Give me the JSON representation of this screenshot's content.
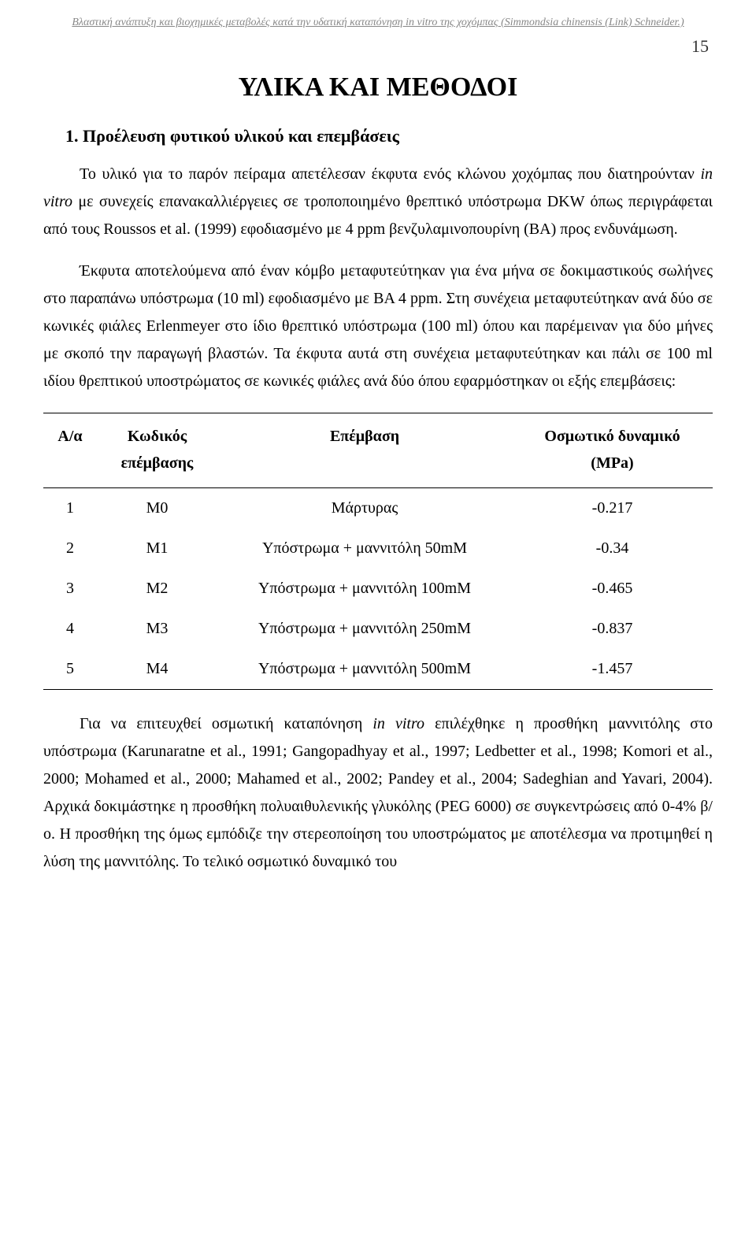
{
  "running_header": "Βλαστική ανάπτυξη και βιοχημικές μεταβολές κατά την υδατική καταπόνηση in vitro της χοχόμπας (Simmondsia chinensis (Link) Schneider.)",
  "page_number": "15",
  "chapter_title": "ΥΛΙΚΑ ΚΑΙ ΜΕΘΟΔΟΙ",
  "section_heading": "1. Προέλευση φυτικού υλικού και επεμβάσεις",
  "paragraph_1_part1": "Το υλικό για το παρόν πείραμα απετέλεσαν έκφυτα ενός κλώνου χοχόμπας που διατηρούνταν ",
  "paragraph_1_italic": "in vitro",
  "paragraph_1_part2": " με συνεχείς επανακαλλιέργειες σε τροποποιημένο θρεπτικό υπόστρωμα DKW όπως περιγράφεται από τους Roussos et al. (1999) εφοδιασμένο με 4 ppm βενζυλαμινοπουρίνη (ΒΑ) προς ενδυνάμωση.",
  "paragraph_2": "Έκφυτα αποτελούμενα από έναν κόμβο μεταφυτεύτηκαν για ένα μήνα σε δοκιμαστικούς σωλήνες στο παραπάνω υπόστρωμα (10 ml) εφοδιασμένο με ΒΑ 4 ppm. Στη συνέχεια μεταφυτεύτηκαν ανά δύο σε κωνικές φιάλες Erlenmeyer στο ίδιο θρεπτικό υπόστρωμα (100 ml) όπου και παρέμειναν για δύο μήνες με σκοπό την παραγωγή βλαστών. Τα έκφυτα αυτά στη συνέχεια μεταφυτεύτηκαν και πάλι σε 100 ml ιδίου θρεπτικού υποστρώματος σε κωνικές φιάλες ανά δύο όπου εφαρμόστηκαν οι εξής επεμβάσεις:",
  "table": {
    "headers": {
      "aa": "Α/α",
      "code_line1": "Κωδικός",
      "code_line2": "επέμβασης",
      "treatment": "Επέμβαση",
      "osmotic_line1": "Οσμωτικό δυναμικό",
      "osmotic_line2": "(MPa)"
    },
    "rows": [
      {
        "aa": "1",
        "code": "Μ0",
        "treatment": "Μάρτυρας",
        "osmotic": "-0.217"
      },
      {
        "aa": "2",
        "code": "Μ1",
        "treatment": "Υπόστρωμα + μαννιτόλη 50mM",
        "osmotic": "-0.34"
      },
      {
        "aa": "3",
        "code": "Μ2",
        "treatment": "Υπόστρωμα + μαννιτόλη 100mM",
        "osmotic": "-0.465"
      },
      {
        "aa": "4",
        "code": "Μ3",
        "treatment": "Υπόστρωμα + μαννιτόλη 250mM",
        "osmotic": "-0.837"
      },
      {
        "aa": "5",
        "code": "Μ4",
        "treatment": "Υπόστρωμα + μαννιτόλη 500mM",
        "osmotic": "-1.457"
      }
    ]
  },
  "paragraph_3_part1": "Για να επιτευχθεί οσμωτική καταπόνηση ",
  "paragraph_3_italic": "in vitro",
  "paragraph_3_part2": " επιλέχθηκε η προσθήκη μαννιτόλης στο υπόστρωμα (Karunaratne et al., 1991; Gangopadhyay et al., 1997; Ledbetter et al., 1998; Komori et al., 2000; Mohamed et al., 2000; Mahamed et al., 2002; Pandey et al., 2004; Sadeghian and Yavari, 2004). Αρχικά δοκιμάστηκε η προσθήκη πολυαιθυλενικής γλυκόλης (PEG 6000) σε συγκεντρώσεις από 0-4% β/ο. Η προσθήκη της όμως εμπόδιζε την στερεοποίηση του υποστρώματος με αποτέλεσμα να προτιμηθεί η λύση της μαννιτόλης. Το τελικό οσμωτικό δυναμικό του"
}
